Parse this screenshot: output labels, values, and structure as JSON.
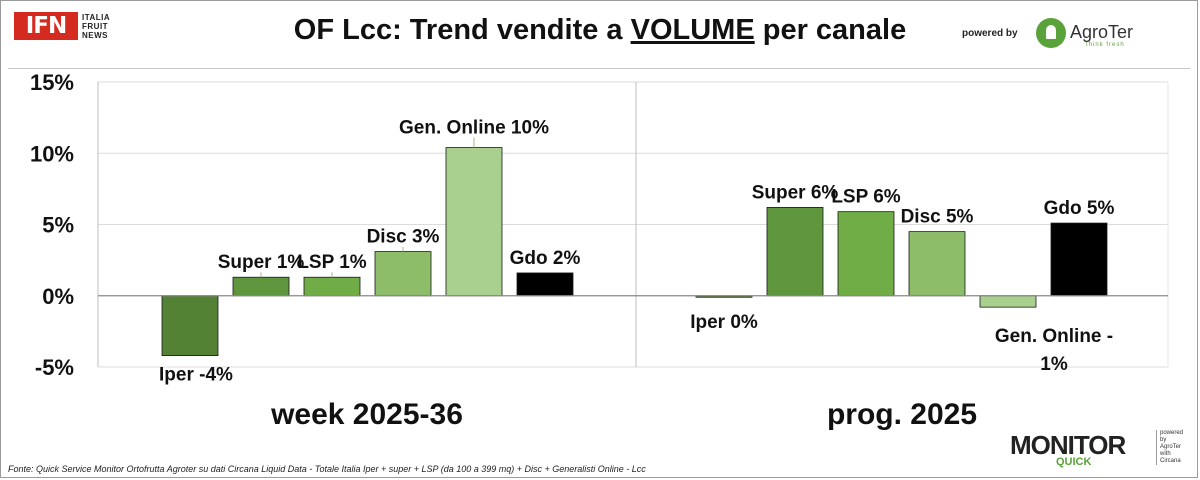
{
  "header": {
    "title_prefix": "OF Lcc: Trend vendite a ",
    "title_emph": "VOLUME",
    "title_suffix": " per canale",
    "ifn_logo": "IFN",
    "ifn_side": [
      "ITALIA",
      "FRUIT",
      "NEWS"
    ],
    "powered_by": "powered by",
    "agroter_name": "AgroTer",
    "agroter_tagline": "think fresh"
  },
  "footer": {
    "source": "Fonte: Quick Service Monitor Ortofrutta Agroter su dati Circana Liquid Data - Totale Italia Iper + super + LSP (da 100 a 399 mq) + Disc + Generalisti Online - Lcc",
    "monitor_word": "MONITOR",
    "monitor_quick": "QUICK",
    "monitor_powered": [
      "powered by",
      "AgroTer",
      "with",
      "Circana"
    ]
  },
  "colors": {
    "iper": "#548235",
    "super": "#5f953d",
    "lsp": "#70ad47",
    "disc": "#8dbd69",
    "online": "#a9d08e",
    "gdo": "#000000"
  },
  "chart_data": [
    {
      "type": "bar",
      "panel_label": "week 2025-36",
      "categories": [
        "Iper",
        "Super",
        "LSP",
        "Disc",
        "Gen. Online",
        "Gdo"
      ],
      "values": [
        -4.2,
        1.3,
        1.3,
        3.1,
        10.4,
        1.6
      ],
      "data_labels": [
        "Iper -4%",
        "Super 1%",
        "LSP 1%",
        "Disc 3%",
        "Gen. Online 10%",
        "Gdo 2%"
      ],
      "ylim": [
        -5,
        15
      ],
      "yticks": [
        "-5%",
        "0%",
        "5%",
        "10%",
        "15%"
      ],
      "grid": true
    },
    {
      "type": "bar",
      "panel_label": "prog. 2025",
      "categories": [
        "Iper",
        "Super",
        "LSP",
        "Disc",
        "Gen. Online",
        "Gdo"
      ],
      "values": [
        -0.1,
        6.2,
        5.9,
        4.5,
        -0.8,
        5.1
      ],
      "data_labels": [
        "Iper 0%",
        "Super 6%",
        "LSP 6%",
        "Disc 5%",
        "Gen. Online -",
        "Gdo 5%"
      ],
      "label_extra": {
        "index": 4,
        "text": "1%"
      },
      "ylim": [
        -5,
        15
      ],
      "grid": true
    }
  ]
}
